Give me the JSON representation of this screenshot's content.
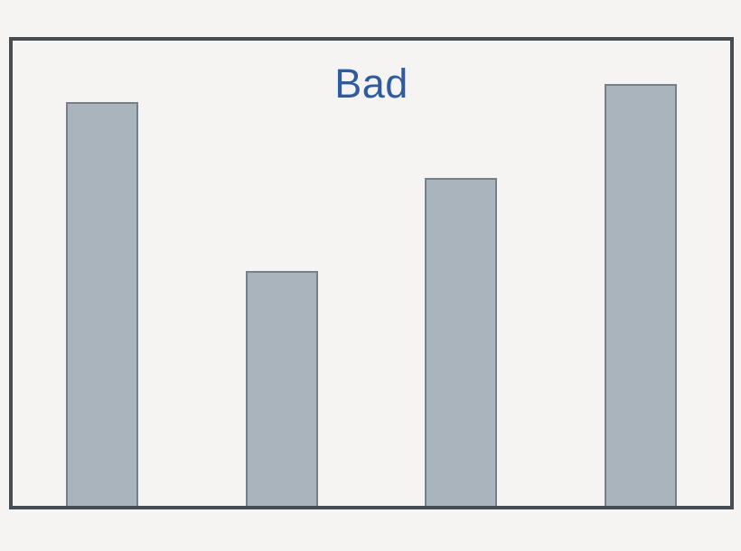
{
  "page": {
    "background": "#f5f4f3"
  },
  "chart_data": {
    "type": "bar",
    "title": "Bad",
    "subtitle": "",
    "xlabel": "",
    "ylabel": "",
    "categories": [
      "",
      "",
      "",
      ""
    ],
    "values": [
      86.8,
      50.5,
      70.5,
      90.7
    ],
    "ylim": [
      0,
      100
    ],
    "axes_visible": false,
    "tick_labels_visible": false,
    "gridlines": false,
    "legend": false,
    "data_labels": false,
    "colors": {
      "title_color": "#2f5c9f",
      "bar_fill": "#a9b4bc",
      "bar_border": "#75818a",
      "frame_border": "#454c52",
      "plot_background": "#f5f4f3"
    }
  }
}
